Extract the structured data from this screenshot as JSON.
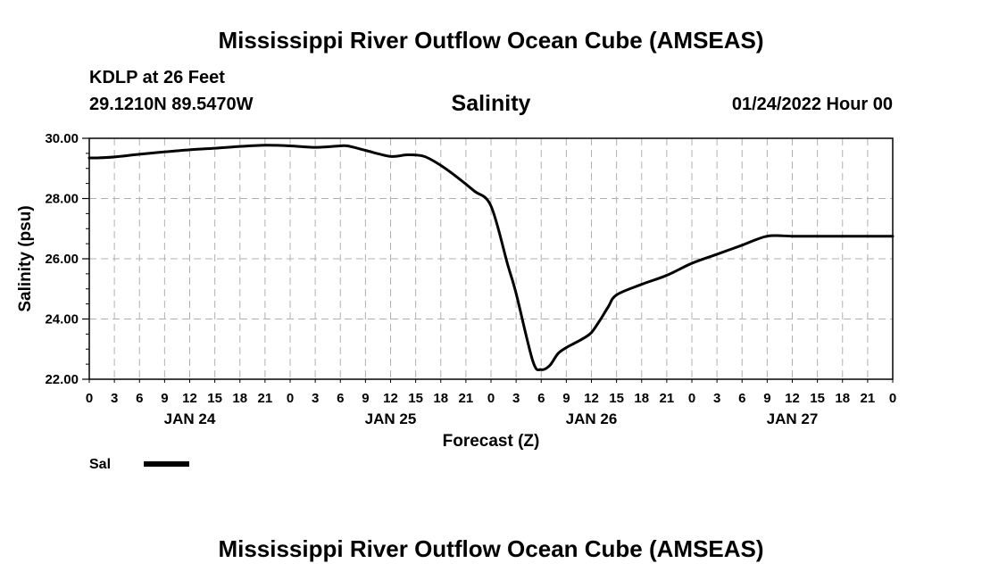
{
  "header": {
    "title": "Mississippi River Outflow Ocean Cube (AMSEAS)",
    "station": "KDLP at 26 Feet",
    "coords": "29.1210N  89.5470W",
    "variable": "Salinity",
    "datetime": "01/24/2022 Hour 00"
  },
  "footer": {
    "title": "Mississippi River Outflow Ocean Cube (AMSEAS)"
  },
  "colors": {
    "line": "#000000",
    "grid": "#b0b0b0"
  },
  "chart_data": {
    "type": "line",
    "title": "Salinity",
    "xlabel": "Forecast (Z)",
    "ylabel": "Salinity (psu)",
    "ylim": [
      22.0,
      30.0
    ],
    "xlim": [
      0,
      96
    ],
    "yticks": [
      "22.00",
      "24.00",
      "26.00",
      "28.00",
      "30.00"
    ],
    "xtick_labels": [
      "0",
      "3",
      "6",
      "9",
      "12",
      "15",
      "18",
      "21",
      "0",
      "3",
      "6",
      "9",
      "12",
      "15",
      "18",
      "21",
      "0",
      "3",
      "6",
      "9",
      "12",
      "15",
      "18",
      "21",
      "0",
      "3",
      "6",
      "9",
      "12",
      "15",
      "18",
      "21",
      "0"
    ],
    "day_labels": [
      {
        "label": "JAN 24",
        "hour": 12
      },
      {
        "label": "JAN 25",
        "hour": 36
      },
      {
        "label": "JAN 26",
        "hour": 60
      },
      {
        "label": "JAN 27",
        "hour": 84
      }
    ],
    "grid": true,
    "legend": "bottom-left",
    "series": [
      {
        "name": "Sal",
        "x": [
          0,
          1,
          3,
          6,
          9,
          12,
          15,
          18,
          21,
          24,
          27,
          30,
          31,
          33,
          36,
          38,
          40,
          42,
          44,
          46,
          48,
          50,
          51,
          53,
          54,
          55,
          56,
          57,
          58,
          59,
          60,
          61,
          62,
          63,
          66,
          69,
          72,
          75,
          78,
          81,
          84,
          87,
          90,
          93,
          96
        ],
        "values": [
          29.35,
          29.35,
          29.38,
          29.47,
          29.55,
          29.62,
          29.67,
          29.73,
          29.77,
          29.75,
          29.7,
          29.75,
          29.74,
          29.6,
          29.4,
          29.45,
          29.4,
          29.1,
          28.7,
          28.25,
          27.75,
          25.8,
          24.85,
          22.6,
          22.32,
          22.45,
          22.85,
          23.05,
          23.2,
          23.35,
          23.55,
          23.95,
          24.4,
          24.8,
          25.15,
          25.45,
          25.85,
          26.15,
          26.45,
          26.75,
          26.75,
          26.75,
          26.75,
          26.75,
          26.75
        ]
      }
    ]
  }
}
